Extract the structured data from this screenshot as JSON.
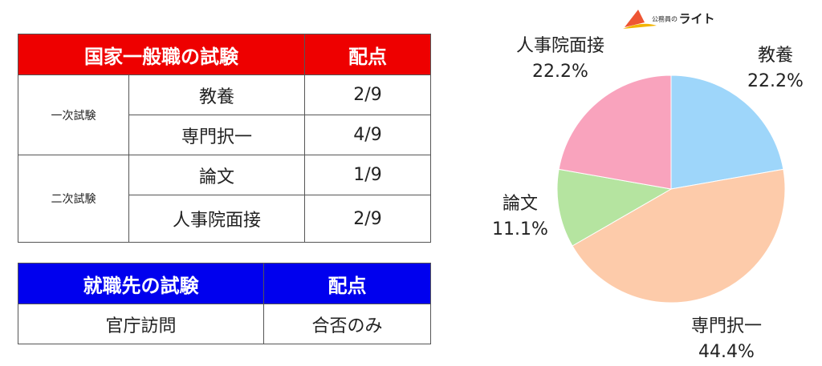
{
  "logo": {
    "small": "公務員の",
    "main": "ライト"
  },
  "table1": {
    "header": [
      "国家一般職の試験",
      "配点"
    ],
    "groups": [
      {
        "name": "一次試験",
        "rows": [
          [
            "教養",
            "2/9"
          ],
          [
            "専門択一",
            "4/9"
          ]
        ]
      },
      {
        "name": "二次試験",
        "rows": [
          [
            "論文",
            "1/9"
          ],
          [
            "人事院面接",
            "2/9"
          ]
        ]
      }
    ]
  },
  "table2": {
    "header": [
      "就職先の試験",
      "配点"
    ],
    "rows": [
      [
        "官庁訪問",
        "合否のみ"
      ]
    ]
  },
  "chart_data": {
    "type": "pie",
    "categories": [
      "教養",
      "専門択一",
      "論文",
      "人事院面接"
    ],
    "values": [
      22.2,
      44.4,
      11.1,
      22.2
    ],
    "value_labels": [
      "22.2%",
      "44.4%",
      "11.1%",
      "22.2%"
    ],
    "colors": [
      "#9ed6fa",
      "#fdcbaa",
      "#b5e4a0",
      "#f9a3bd"
    ]
  }
}
